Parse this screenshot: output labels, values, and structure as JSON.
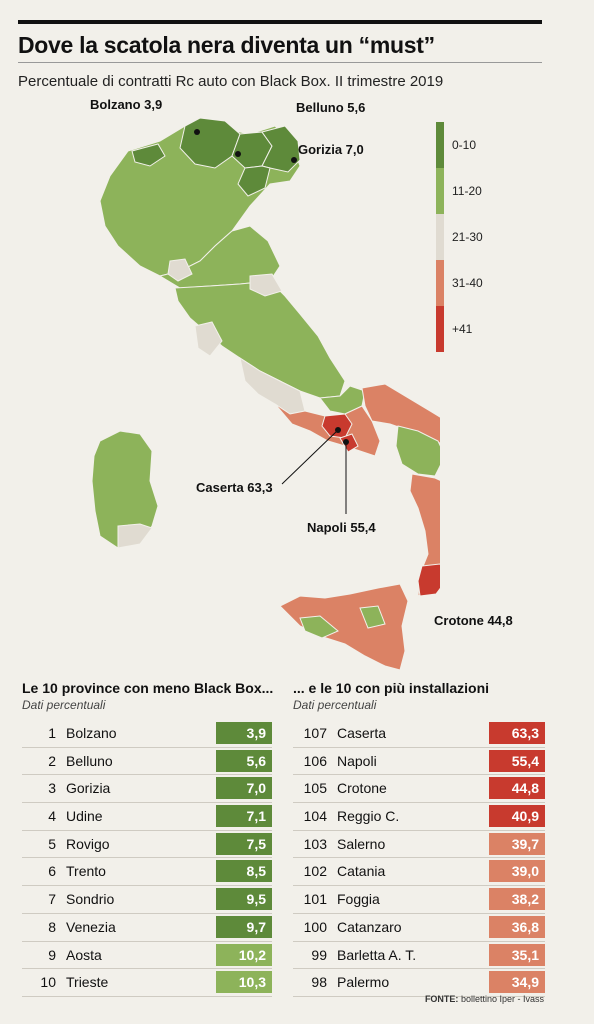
{
  "title": "Dove la scatola nera diventa un “must”",
  "subtitle": "Percentuale di contratti Rc auto con Black Box. II trimestre 2019",
  "colors": {
    "c0_10": "#5e8a3a",
    "c11_20": "#8db35a",
    "c21_30": "#e0dbd1",
    "c31_40": "#db8265",
    "c41": "#c83a2e"
  },
  "legend": [
    {
      "label": "0-10",
      "color": "#5e8a3a"
    },
    {
      "label": "11-20",
      "color": "#8db35a"
    },
    {
      "label": "21-30",
      "color": "#e0dbd1"
    },
    {
      "label": "31-40",
      "color": "#db8265"
    },
    {
      "label": "+41",
      "color": "#c83a2e"
    }
  ],
  "callouts": {
    "bolzano": "Bolzano 3,9",
    "belluno": "Belluno 5,6",
    "gorizia": "Gorizia 7,0",
    "caserta": "Caserta 63,3",
    "napoli": "Napoli 55,4",
    "crotone": "Crotone 44,8"
  },
  "chart_data": [
    {
      "type": "table",
      "title": "Le 10 province con meno Black Box...",
      "subtitle": "Dati percentuali",
      "rows": [
        {
          "rank": "1",
          "province": "Bolzano",
          "value": "3,9"
        },
        {
          "rank": "2",
          "province": "Belluno",
          "value": "5,6"
        },
        {
          "rank": "3",
          "province": "Gorizia",
          "value": "7,0"
        },
        {
          "rank": "4",
          "province": "Udine",
          "value": "7,1"
        },
        {
          "rank": "5",
          "province": "Rovigo",
          "value": "7,5"
        },
        {
          "rank": "6",
          "province": "Trento",
          "value": "8,5"
        },
        {
          "rank": "7",
          "province": "Sondrio",
          "value": "9,5"
        },
        {
          "rank": "8",
          "province": "Venezia",
          "value": "9,7"
        },
        {
          "rank": "9",
          "province": "Aosta",
          "value": "10,2"
        },
        {
          "rank": "10",
          "province": "Trieste",
          "value": "10,3"
        }
      ]
    },
    {
      "type": "table",
      "title": "... e le 10 con più installazioni",
      "subtitle": "Dati percentuali",
      "rows": [
        {
          "rank": "107",
          "province": "Caserta",
          "value": "63,3"
        },
        {
          "rank": "106",
          "province": "Napoli",
          "value": "55,4"
        },
        {
          "rank": "105",
          "province": "Crotone",
          "value": "44,8"
        },
        {
          "rank": "104",
          "province": "Reggio C.",
          "value": "40,9"
        },
        {
          "rank": "103",
          "province": "Salerno",
          "value": "39,7"
        },
        {
          "rank": "102",
          "province": "Catania",
          "value": "39,0"
        },
        {
          "rank": "101",
          "province": "Foggia",
          "value": "38,2"
        },
        {
          "rank": "100",
          "province": "Catanzaro",
          "value": "36,8"
        },
        {
          "rank": "99",
          "province": "Barletta A. T.",
          "value": "35,1"
        },
        {
          "rank": "98",
          "province": "Palermo",
          "value": "34,9"
        }
      ]
    }
  ],
  "source": {
    "label": "FONTE:",
    "text": "bollettino Iper - Ivass"
  }
}
